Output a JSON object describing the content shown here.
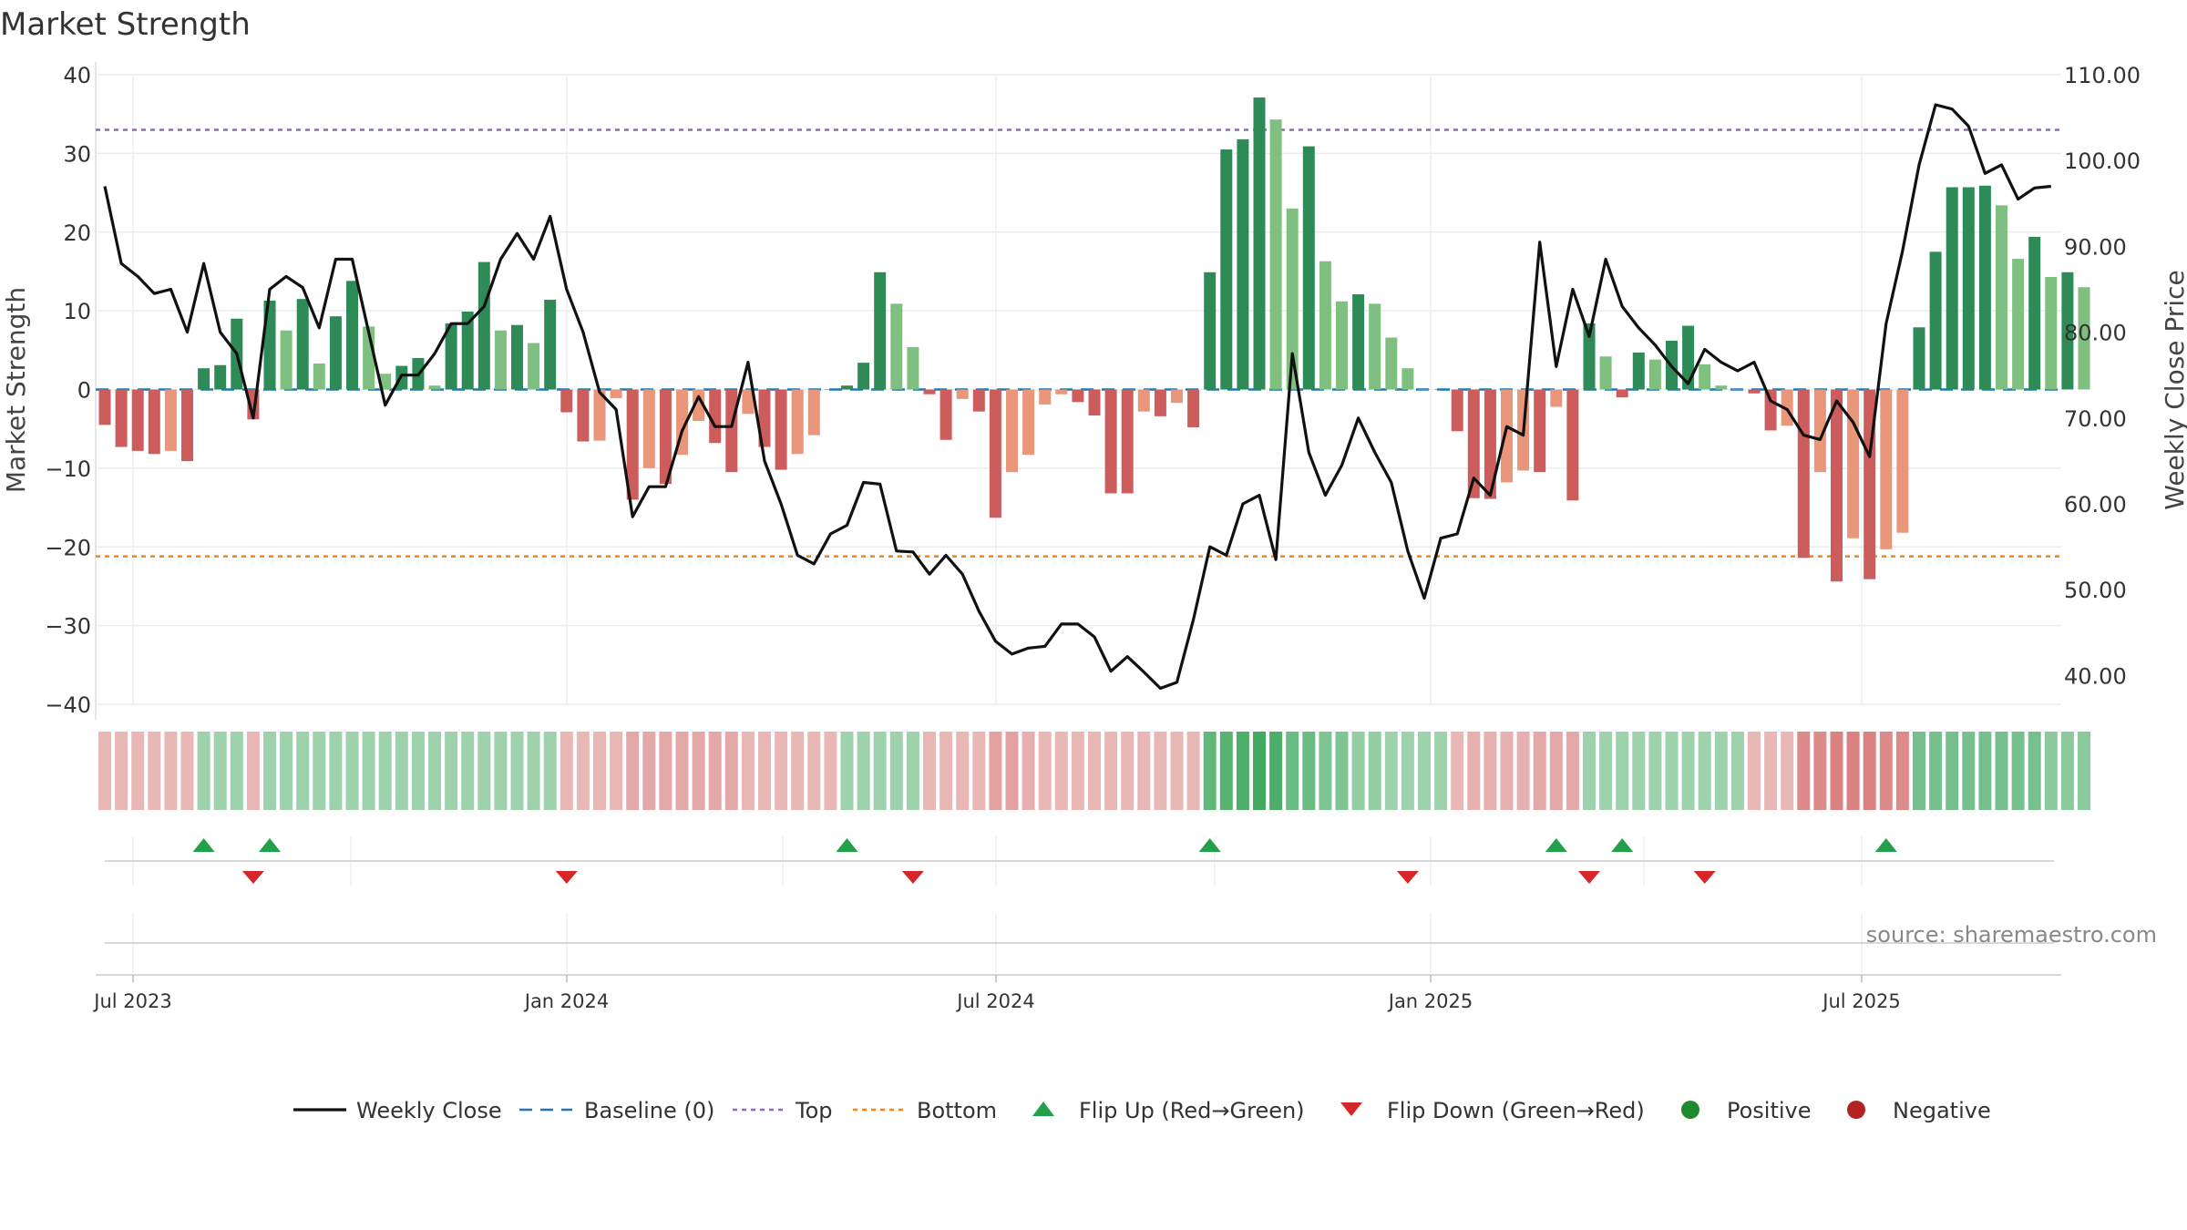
{
  "chart_data": {
    "type": "bar",
    "title": "Market Strength",
    "ylabel": "Market Strength",
    "y2label": "Weekly Close Price",
    "ylim": [
      -40,
      40
    ],
    "y2lim": [
      35.0,
      110.0
    ],
    "yticks": [
      "40",
      "30",
      "20",
      "10",
      "0",
      "−10",
      "−20",
      "−30",
      "−40"
    ],
    "y2ticks": [
      "110.00",
      "100.00",
      "90.00",
      "80.00",
      "70.00",
      "60.00",
      "50.00",
      "40.00"
    ],
    "xticks": [
      "Jul 2023",
      "Jan 2024",
      "Jul 2024",
      "Jan 2025",
      "Jul 2025"
    ],
    "top_level": 33,
    "bottom_level": -21.2,
    "grid": true,
    "source": "source: sharemaestro.com",
    "colors": {
      "pos_strong": "#2e8b57",
      "pos_light": "#7fbf7f",
      "neg_strong": "#cd5c5c",
      "neg_light": "#e9967a",
      "baseline": "#1f77b4",
      "top": "#9467bd",
      "bottom": "#ff7f0e",
      "close": "#111111",
      "flip_up": "#22a04a",
      "flip_down": "#d62728"
    },
    "strength": [
      -4.5,
      -7.3,
      -7.8,
      -8.2,
      -7.8,
      -9.1,
      2.7,
      3.1,
      9.0,
      -3.8,
      11.3,
      7.5,
      11.5,
      3.3,
      9.3,
      13.8,
      8.0,
      2.0,
      3.0,
      4.0,
      0.5,
      8.4,
      9.9,
      16.2,
      7.5,
      8.2,
      5.9,
      11.4,
      -2.9,
      -6.6,
      -6.5,
      -1.1,
      -14.0,
      -10.0,
      -12.0,
      -8.3,
      -4.0,
      -6.8,
      -10.5,
      -3.1,
      -7.3,
      -10.2,
      -8.2,
      -5.8,
      0.0,
      0.5,
      3.4,
      14.9,
      10.9,
      5.4,
      -0.6,
      -6.4,
      -1.2,
      -2.8,
      -16.3,
      -10.5,
      -8.3,
      -1.9,
      -0.6,
      -1.6,
      -3.3,
      -13.2,
      -13.2,
      -2.8,
      -3.4,
      -1.7,
      -4.8,
      14.9,
      30.5,
      31.8,
      37.1,
      34.3,
      23.0,
      30.9,
      16.3,
      11.2,
      12.1,
      10.9,
      6.6,
      2.7,
      0.0,
      0.0,
      -5.3,
      -13.8,
      -13.9,
      -11.8,
      -10.3,
      -10.5,
      -2.2,
      -14.1,
      8.4,
      4.2,
      -1.0,
      4.7,
      3.8,
      6.2,
      8.1,
      3.2,
      0.5,
      0.0,
      -0.5,
      -5.2,
      -4.6,
      -21.4,
      -10.5,
      -24.4,
      -18.9,
      -24.1,
      -20.3,
      -18.2,
      7.9,
      17.5,
      25.7,
      25.7,
      25.9,
      23.4,
      16.6,
      19.4,
      14.3,
      14.9,
      13.0
    ],
    "close": [
      97.0,
      88.0,
      86.5,
      84.5,
      85.0,
      80.0,
      88.0,
      80.0,
      77.5,
      70.0,
      85.0,
      86.5,
      85.2,
      80.5,
      88.5,
      88.5,
      80.0,
      71.5,
      75.0,
      75.0,
      77.5,
      81.0,
      81.0,
      83.0,
      88.5,
      91.5,
      88.5,
      93.5,
      85.0,
      80.0,
      73.0,
      71.0,
      58.5,
      62.0,
      62.0,
      68.5,
      72.5,
      69.0,
      69.0,
      76.5,
      65.0,
      60.0,
      54.0,
      53.0,
      56.5,
      57.5,
      62.5,
      62.3,
      54.5,
      54.4,
      51.8,
      54.0,
      51.8,
      47.5,
      44.0,
      42.5,
      43.2,
      43.4,
      46.0,
      46.0,
      44.5,
      40.5,
      42.2,
      40.4,
      38.5,
      39.2,
      46.5,
      55.0,
      54.0,
      60.0,
      61.0,
      53.5,
      77.5,
      66.0,
      61.0,
      64.5,
      70.0,
      66.0,
      62.5,
      54.5,
      49.0,
      56.0,
      56.5,
      63.0,
      61.0,
      69.0,
      68.0,
      90.5,
      76.0,
      85.0,
      79.5,
      88.5,
      83.0,
      80.5,
      78.5,
      76.0,
      74.0,
      78.0,
      76.5,
      75.5,
      76.5,
      72.0,
      71.0,
      68.0,
      67.5,
      72.0,
      69.5,
      65.5,
      81.0,
      89.5,
      99.5,
      106.5,
      106.0,
      104.0,
      98.5,
      99.5,
      95.5,
      96.8,
      97.0
    ],
    "heat": [
      -0.5,
      -0.5,
      -0.5,
      -0.5,
      -0.5,
      -0.5,
      0.6,
      0.6,
      0.6,
      -0.5,
      0.6,
      0.6,
      0.6,
      0.6,
      0.6,
      0.6,
      0.6,
      0.6,
      0.6,
      0.6,
      0.6,
      0.6,
      0.6,
      0.6,
      0.6,
      0.6,
      0.6,
      0.6,
      -0.5,
      -0.5,
      -0.5,
      -0.5,
      -0.7,
      -0.7,
      -0.7,
      -0.7,
      -0.7,
      -0.7,
      -0.7,
      -0.5,
      -0.5,
      -0.5,
      -0.5,
      -0.5,
      -0.5,
      0.6,
      0.6,
      0.6,
      0.6,
      0.6,
      -0.5,
      -0.5,
      -0.5,
      -0.5,
      -0.8,
      -0.8,
      -0.6,
      -0.5,
      -0.5,
      -0.5,
      -0.5,
      -0.5,
      -0.5,
      -0.5,
      -0.5,
      -0.5,
      -0.5,
      1.2,
      1.3,
      1.4,
      1.5,
      1.4,
      1.1,
      1.1,
      0.9,
      0.9,
      0.7,
      0.7,
      0.6,
      0.6,
      0.6,
      0.6,
      -0.5,
      -0.6,
      -0.6,
      -0.6,
      -0.6,
      -0.7,
      -0.7,
      -0.7,
      0.6,
      0.6,
      0.6,
      0.6,
      0.6,
      0.6,
      0.6,
      0.6,
      0.6,
      0.6,
      -0.5,
      -0.5,
      -0.5,
      -1.1,
      -1.1,
      -1.2,
      -1.2,
      -1.2,
      -1.1,
      -1.1,
      1.0,
      1.0,
      1.0,
      1.0,
      1.0,
      1.0,
      1.0,
      1.0,
      0.8,
      0.8,
      0.8
    ],
    "flips_up": [
      6,
      10,
      45,
      67,
      88,
      92,
      108
    ],
    "flips_down": [
      9,
      28,
      49,
      79,
      90,
      97
    ],
    "legend": [
      "Weekly Close",
      "Baseline (0)",
      "Top",
      "Bottom",
      "Flip Up (Red→Green)",
      "Flip Down (Green→Red)",
      "Positive",
      "Negative"
    ]
  }
}
